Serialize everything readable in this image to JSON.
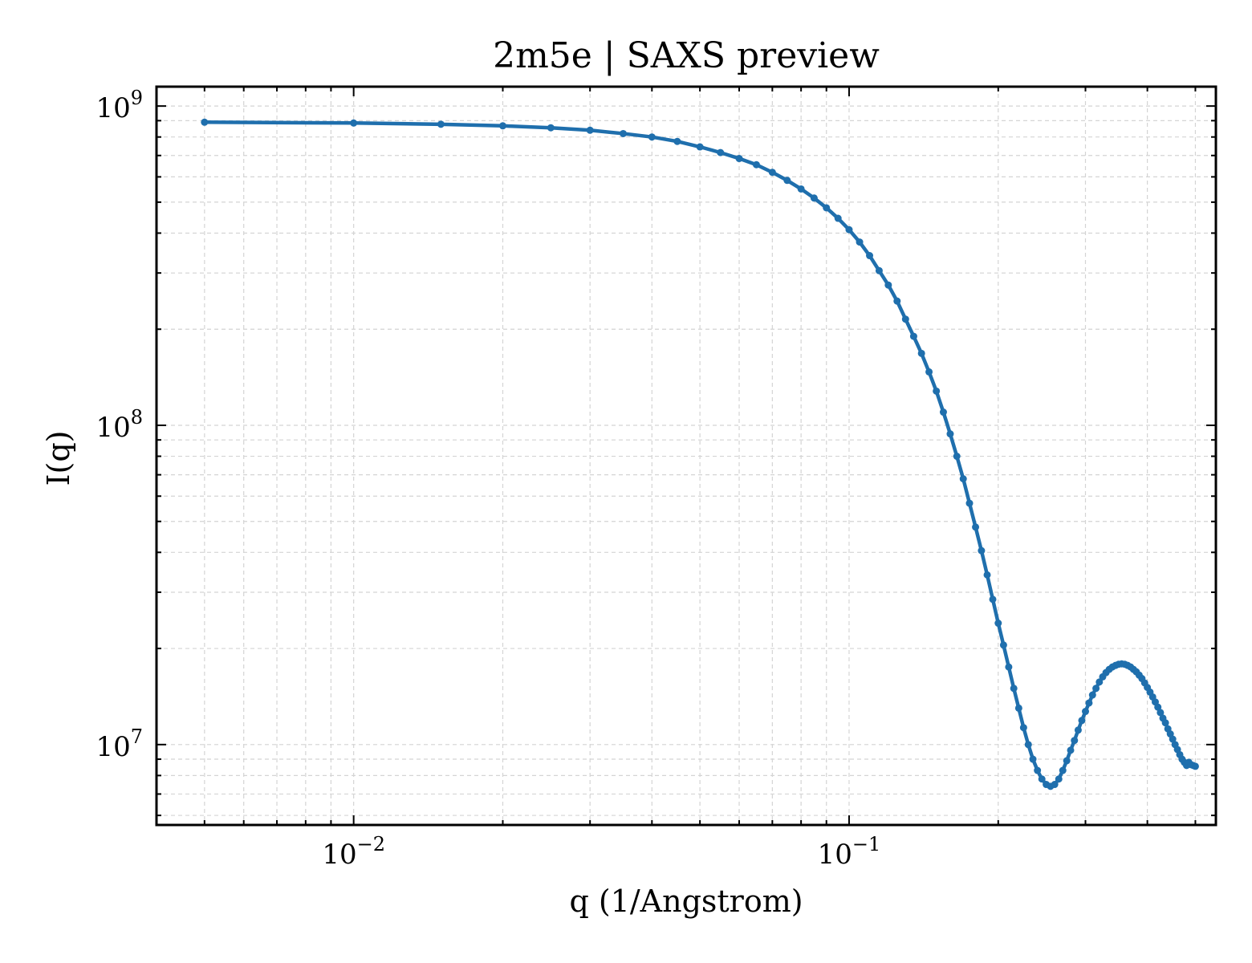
{
  "chart_data": {
    "type": "line",
    "title": "2m5e | SAXS preview",
    "xlabel": "q (1/Angstrom)",
    "ylabel": "I(q)",
    "xscale": "log",
    "yscale": "log",
    "xlim": [
      0.004,
      0.55
    ],
    "ylim": [
      5600000.0,
      1150000000.0
    ],
    "grid": true,
    "legend": "none",
    "x_ticks": [
      {
        "value": 0.01,
        "base": "10",
        "exponent": "−2"
      },
      {
        "value": 0.1,
        "base": "10",
        "exponent": "−1"
      }
    ],
    "y_ticks": [
      {
        "value": 10000000.0,
        "base": "10",
        "exponent": "7"
      },
      {
        "value": 100000000.0,
        "base": "10",
        "exponent": "8"
      },
      {
        "value": 1000000000.0,
        "base": "10",
        "exponent": "9"
      }
    ],
    "series": [
      {
        "color": "#1f6fad",
        "x": [
          0.005,
          0.01,
          0.015,
          0.02,
          0.025,
          0.03,
          0.035,
          0.04,
          0.045,
          0.05,
          0.055,
          0.06,
          0.065,
          0.07,
          0.075,
          0.08,
          0.085,
          0.09,
          0.095,
          0.1,
          0.105,
          0.11,
          0.115,
          0.12,
          0.125,
          0.13,
          0.135,
          0.14,
          0.145,
          0.15,
          0.155,
          0.16,
          0.165,
          0.17,
          0.175,
          0.18,
          0.185,
          0.19,
          0.195,
          0.2,
          0.205,
          0.21,
          0.215,
          0.22,
          0.225,
          0.23,
          0.235,
          0.24,
          0.245,
          0.25,
          0.255,
          0.26,
          0.265,
          0.27,
          0.275,
          0.28,
          0.285,
          0.29,
          0.295,
          0.3,
          0.305,
          0.31,
          0.315,
          0.32,
          0.325,
          0.33,
          0.335,
          0.34,
          0.345,
          0.35,
          0.355,
          0.36,
          0.365,
          0.37,
          0.375,
          0.38,
          0.385,
          0.39,
          0.395,
          0.4,
          0.405,
          0.41,
          0.415,
          0.42,
          0.425,
          0.43,
          0.435,
          0.44,
          0.445,
          0.45,
          0.455,
          0.46,
          0.465,
          0.47,
          0.475,
          0.48,
          0.485,
          0.49,
          0.495,
          0.5
        ],
        "y": [
          890000000.0,
          885000000.0,
          877000000.0,
          867000000.0,
          855000000.0,
          840000000.0,
          820000000.0,
          800000000.0,
          775000000.0,
          745000000.0,
          715000000.0,
          685000000.0,
          655000000.0,
          620000000.0,
          585000000.0,
          550000000.0,
          515000000.0,
          480000000.0,
          445000000.0,
          410000000.0,
          375000000.0,
          340000000.0,
          305000000.0,
          275000000.0,
          245000000.0,
          215000000.0,
          190000000.0,
          168000000.0,
          147000000.0,
          128000000.0,
          110000000.0,
          94000000.0,
          80000000.0,
          68000000.0,
          57000000.0,
          48000000.0,
          40500000.0,
          34000000.0,
          28500000.0,
          24000000.0,
          20500000.0,
          17500000.0,
          15000000.0,
          13000000.0,
          11300000.0,
          10000000.0,
          9000000.0,
          8300000.0,
          7800000.0,
          7500000.0,
          7400000.0,
          7500000.0,
          7800000.0,
          8300000.0,
          8900000.0,
          9600000.0,
          10300000.0,
          11100000.0,
          11900000.0,
          12700000.0,
          13500000.0,
          14300000.0,
          15000000.0,
          15700000.0,
          16300000.0,
          16800000.0,
          17200000.0,
          17500000.0,
          17700000.0,
          17850000.0,
          17900000.0,
          17850000.0,
          17700000.0,
          17500000.0,
          17200000.0,
          16900000.0,
          16500000.0,
          16100000.0,
          15600000.0,
          15100000.0,
          14600000.0,
          14100000.0,
          13600000.0,
          13100000.0,
          12600000.0,
          12100000.0,
          11700000.0,
          11200000.0,
          10800000.0,
          10400000.0,
          10000000.0,
          9650000.0,
          9300000.0,
          9000000.0,
          8800000.0,
          8600000.0,
          8800000.0,
          8650000.0,
          8600000.0,
          8550000.0
        ]
      }
    ]
  }
}
